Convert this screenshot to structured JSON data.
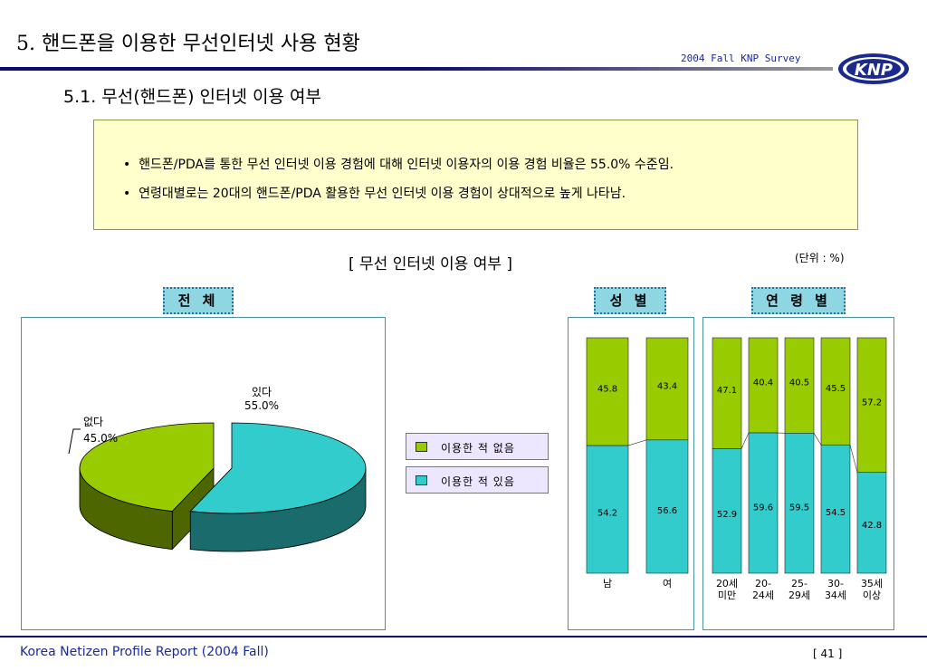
{
  "header": {
    "title": "5. 핸드폰을 이용한 무선인터넷 사용 현황",
    "survey": "2004 Fall KNP Survey",
    "logo_text": "KNP"
  },
  "section": {
    "title": "5.1.  무선(핸드폰) 인터넷 이용 여부"
  },
  "summary": {
    "bullets": [
      "핸드폰/PDA를 통한 무선 인터넷 이용 경험에 대해 인터넷 이용자의 이용 경험 비율은 55.0% 수준임.",
      "연령대별로는 20대의 핸드폰/PDA 활용한 무선 인터넷 이용 경험이 상대적으로 높게 나타남."
    ],
    "bullet_symbol": "•"
  },
  "chart_title": "[ 무선 인터넷 이용 여부 ]",
  "unit": "(단위 : %)",
  "panel_tags": {
    "overall": "전 체",
    "gender": "성 별",
    "age": "연 령 별"
  },
  "legend": {
    "no": "이용한 적 없음",
    "yes": "이용한 적 있음"
  },
  "colors": {
    "no": "#99cc00",
    "yes": "#33cccc",
    "no_dark": "#4d6600",
    "yes_dark": "#1a6b6b"
  },
  "chart_data": [
    {
      "type": "pie",
      "slices": [
        {
          "label": "있다",
          "value": 55.0,
          "value_label": "55.0%"
        },
        {
          "label": "없다",
          "value": 45.0,
          "value_label": "45.0%"
        }
      ]
    },
    {
      "type": "bar",
      "stacked": true,
      "categories": [
        "남",
        "여"
      ],
      "series": [
        {
          "name": "이용한 적 있음",
          "values": [
            54.2,
            56.6
          ]
        },
        {
          "name": "이용한 적 없음",
          "values": [
            45.8,
            43.4
          ]
        }
      ]
    },
    {
      "type": "bar",
      "stacked": true,
      "categories": [
        [
          "20세",
          "미만"
        ],
        [
          "20-",
          "24세"
        ],
        [
          "25-",
          "29세"
        ],
        [
          "30-",
          "34세"
        ],
        [
          "35세",
          "이상"
        ]
      ],
      "series": [
        {
          "name": "이용한 적 있음",
          "values": [
            52.9,
            59.6,
            59.5,
            54.5,
            42.8
          ]
        },
        {
          "name": "이용한 적 없음",
          "values": [
            47.1,
            40.4,
            40.5,
            45.5,
            57.2
          ]
        }
      ]
    }
  ],
  "footer": {
    "report": "Korea Netizen Profile Report (2004 Fall)",
    "page": "[ 41 ]"
  }
}
